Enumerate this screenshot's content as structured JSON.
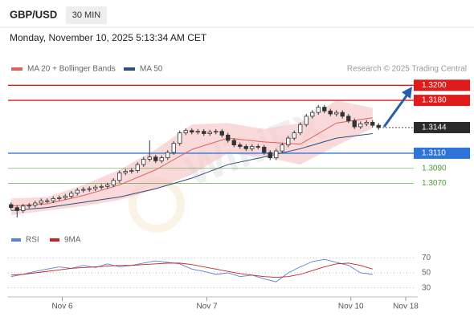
{
  "header": {
    "symbol": "GBP/USD",
    "timeframe": "30 MIN",
    "timestamp": "Monday, November 10, 2025 5:13:34 AM CET",
    "credit": "Research © 2025 Trading Central",
    "watermark": "WikiFX"
  },
  "chart_data": [
    {
      "type": "candlestick",
      "x": [
        0,
        1,
        2,
        3,
        4,
        5,
        6,
        7,
        8,
        9,
        10,
        11,
        12,
        13,
        14,
        15,
        16,
        17,
        18,
        19,
        20,
        21,
        22,
        23,
        24,
        25,
        26,
        27,
        28,
        29,
        30,
        31,
        32,
        33,
        34,
        35,
        36,
        37,
        38,
        39,
        40,
        41,
        42,
        43,
        44,
        45,
        46,
        47,
        48,
        49,
        50,
        51,
        52,
        53,
        54,
        55,
        56,
        57,
        58,
        59,
        60,
        61
      ],
      "open": [
        1.3042,
        1.3038,
        1.3034,
        1.304,
        1.3041,
        1.3044,
        1.3047,
        1.3047,
        1.305,
        1.3051,
        1.3053,
        1.3057,
        1.3061,
        1.3062,
        1.3063,
        1.3065,
        1.3066,
        1.3068,
        1.3074,
        1.3084,
        1.3086,
        1.3087,
        1.3095,
        1.3102,
        1.3105,
        1.31,
        1.3104,
        1.3111,
        1.3123,
        1.3137,
        1.314,
        1.3138,
        1.3139,
        1.3136,
        1.3138,
        1.3139,
        1.3134,
        1.3127,
        1.3121,
        1.3119,
        1.3116,
        1.3119,
        1.3118,
        1.3111,
        1.3104,
        1.3113,
        1.3121,
        1.313,
        1.3137,
        1.3148,
        1.3159,
        1.3164,
        1.3171,
        1.3166,
        1.3162,
        1.3164,
        1.3159,
        1.3153,
        1.3145,
        1.3149,
        1.3151,
        1.3147
      ],
      "high": [
        1.3045,
        1.3041,
        1.3043,
        1.3044,
        1.3047,
        1.305,
        1.305,
        1.3053,
        1.3054,
        1.3056,
        1.306,
        1.3064,
        1.3065,
        1.3066,
        1.3068,
        1.3069,
        1.3071,
        1.3077,
        1.3087,
        1.3089,
        1.309,
        1.3098,
        1.3105,
        1.3127,
        1.3108,
        1.3107,
        1.3114,
        1.3126,
        1.314,
        1.3143,
        1.3143,
        1.3142,
        1.3142,
        1.3141,
        1.3142,
        1.3142,
        1.3137,
        1.313,
        1.3124,
        1.3122,
        1.3122,
        1.3122,
        1.3121,
        1.3114,
        1.3116,
        1.3124,
        1.3133,
        1.314,
        1.3151,
        1.3162,
        1.3167,
        1.3174,
        1.3174,
        1.3169,
        1.3167,
        1.3167,
        1.3162,
        1.3156,
        1.3152,
        1.3154,
        1.3154,
        1.315
      ],
      "low": [
        1.3035,
        1.3025,
        1.3031,
        1.3037,
        1.3038,
        1.3041,
        1.3044,
        1.3044,
        1.3047,
        1.3048,
        1.305,
        1.3054,
        1.3058,
        1.3059,
        1.306,
        1.3062,
        1.3063,
        1.3065,
        1.3071,
        1.3081,
        1.3083,
        1.3084,
        1.3092,
        1.3099,
        1.3097,
        1.3097,
        1.3101,
        1.3108,
        1.312,
        1.3134,
        1.3135,
        1.3135,
        1.3133,
        1.3133,
        1.3135,
        1.3131,
        1.3124,
        1.3118,
        1.3116,
        1.3113,
        1.3113,
        1.3115,
        1.3108,
        1.3101,
        1.3101,
        1.311,
        1.3118,
        1.3127,
        1.3134,
        1.3145,
        1.3156,
        1.3161,
        1.3163,
        1.3159,
        1.3159,
        1.3156,
        1.315,
        1.3142,
        1.3142,
        1.3146,
        1.3144,
        1.3141
      ],
      "close": [
        1.3038,
        1.3034,
        1.304,
        1.3041,
        1.3044,
        1.3047,
        1.3047,
        1.305,
        1.3051,
        1.3053,
        1.3057,
        1.3061,
        1.3062,
        1.3063,
        1.3065,
        1.3066,
        1.3068,
        1.3074,
        1.3084,
        1.3086,
        1.3087,
        1.3095,
        1.3102,
        1.3105,
        1.31,
        1.3104,
        1.3111,
        1.3123,
        1.3137,
        1.314,
        1.3138,
        1.3139,
        1.3136,
        1.3138,
        1.3139,
        1.3134,
        1.3127,
        1.3121,
        1.3119,
        1.3116,
        1.3119,
        1.3118,
        1.3111,
        1.3104,
        1.3113,
        1.3121,
        1.313,
        1.3137,
        1.3148,
        1.3159,
        1.3164,
        1.3171,
        1.3166,
        1.3162,
        1.3164,
        1.3159,
        1.3153,
        1.3145,
        1.3149,
        1.3151,
        1.3147,
        1.3144
      ],
      "series": [
        {
          "name": "MA 20 + Bollinger Bands",
          "color": "#e06060",
          "band_color": "#f6c9c9",
          "x": [
            0,
            6,
            12,
            18,
            24,
            30,
            36,
            42,
            48,
            54,
            60
          ],
          "values": [
            1.304,
            1.3043,
            1.3054,
            1.3068,
            1.3088,
            1.3115,
            1.313,
            1.3125,
            1.3122,
            1.315,
            1.3157
          ],
          "upper": [
            1.305,
            1.3052,
            1.3068,
            1.3088,
            1.3115,
            1.3148,
            1.315,
            1.3142,
            1.315,
            1.318,
            1.317
          ],
          "lower": [
            1.3028,
            1.3034,
            1.304,
            1.3048,
            1.3062,
            1.3082,
            1.311,
            1.3105,
            1.3095,
            1.312,
            1.3143
          ]
        },
        {
          "name": "MA 50",
          "color": "#2d4f7a",
          "x": [
            0,
            6,
            12,
            18,
            24,
            30,
            36,
            42,
            48,
            54,
            60
          ],
          "values": [
            1.3034,
            1.3038,
            1.3045,
            1.3052,
            1.3063,
            1.3077,
            1.3095,
            1.3105,
            1.3116,
            1.313,
            1.3136
          ]
        }
      ],
      "levels": [
        {
          "value": 1.32,
          "label": "1.3200",
          "color": "#e01b1b",
          "line": "solid",
          "label_box": true
        },
        {
          "value": 1.318,
          "label": "1.3180",
          "color": "#e01b1b",
          "line": "solid",
          "label_box": true
        },
        {
          "value": 1.3144,
          "label": "1.3144",
          "color": "#2b2b2b",
          "line": "dotted",
          "label_box": true
        },
        {
          "value": 1.311,
          "label": "1.3110",
          "color": "#2f74d8",
          "line": "solid",
          "label_box": true
        },
        {
          "value": 1.309,
          "label": "1.3090",
          "color": "#4a9a3a",
          "line": "solid",
          "label_box": false
        },
        {
          "value": 1.307,
          "label": "1.3070",
          "color": "#4a9a3a",
          "line": "solid",
          "label_box": false
        }
      ],
      "xlim": [
        -0.5,
        67.5
      ],
      "ylim": [
        1.301,
        1.3212
      ]
    },
    {
      "type": "line",
      "series": [
        {
          "name": "RSI",
          "color": "#5a7fd8",
          "x": [
            0,
            2,
            4,
            6,
            8,
            10,
            12,
            14,
            16,
            18,
            20,
            22,
            24,
            26,
            28,
            30,
            32,
            34,
            36,
            38,
            40,
            42,
            44,
            46,
            48,
            50,
            52,
            54,
            56,
            58,
            60
          ],
          "values": [
            45,
            48,
            52,
            55,
            58,
            56,
            60,
            57,
            62,
            58,
            60,
            63,
            66,
            64,
            62,
            55,
            52,
            48,
            50,
            45,
            47,
            42,
            38,
            50,
            58,
            65,
            68,
            64,
            60,
            50,
            48
          ]
        },
        {
          "name": "9MA",
          "color": "#cc2222",
          "x": [
            0,
            2,
            4,
            6,
            8,
            10,
            12,
            14,
            16,
            18,
            20,
            22,
            24,
            26,
            28,
            30,
            32,
            34,
            36,
            38,
            40,
            42,
            44,
            46,
            48,
            50,
            52,
            54,
            56,
            58,
            60
          ],
          "values": [
            47,
            48,
            50,
            52,
            54,
            56,
            57,
            58,
            59,
            60,
            60,
            61,
            62,
            63,
            63,
            61,
            58,
            55,
            52,
            49,
            47,
            45,
            44,
            45,
            48,
            53,
            58,
            62,
            63,
            60,
            55
          ]
        }
      ],
      "xlim": [
        -0.5,
        67.5
      ],
      "xticks": [
        {
          "value": 8.5,
          "label": "Nov 6"
        },
        {
          "value": 32.5,
          "label": "Nov 7"
        },
        {
          "value": 56.4,
          "label": "Nov 10"
        },
        {
          "value": 65.5,
          "label": "Nov 18"
        }
      ],
      "ylim": [
        20,
        80
      ],
      "yticks": [
        70,
        50,
        30
      ],
      "grid": true
    }
  ]
}
